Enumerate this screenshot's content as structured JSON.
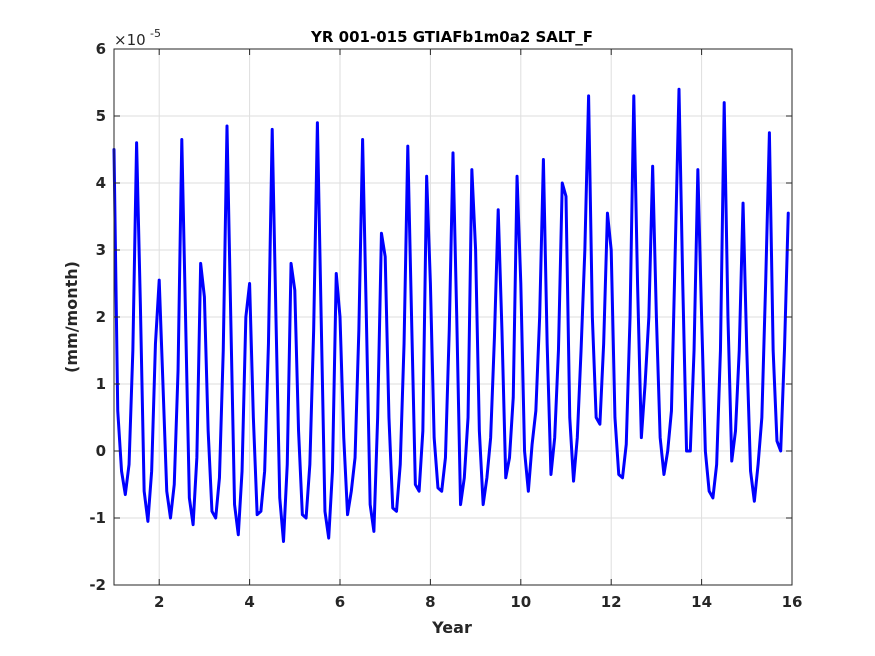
{
  "chart_data": {
    "type": "line",
    "title": "YR 001-015 GTIAFb1m0a2 SALT_F",
    "xlabel": "Year",
    "ylabel": "(mm/month)",
    "y_exponent_base": "×10",
    "y_exponent_power": "-5",
    "xlim": [
      1,
      16
    ],
    "ylim": [
      -2,
      6
    ],
    "xticks": [
      2,
      4,
      6,
      8,
      10,
      12,
      14,
      16
    ],
    "yticks": [
      -2,
      -1,
      0,
      1,
      2,
      3,
      4,
      5,
      6
    ],
    "grid": true,
    "legend": "none",
    "series": [
      {
        "color": "#0000ff",
        "x": [
          1.0,
          1.083,
          1.167,
          1.25,
          1.333,
          1.417,
          1.5,
          1.583,
          1.667,
          1.75,
          1.833,
          1.917,
          2.0,
          2.083,
          2.167,
          2.25,
          2.333,
          2.417,
          2.5,
          2.583,
          2.667,
          2.75,
          2.833,
          2.917,
          3.0,
          3.083,
          3.167,
          3.25,
          3.333,
          3.417,
          3.5,
          3.583,
          3.667,
          3.75,
          3.833,
          3.917,
          4.0,
          4.083,
          4.167,
          4.25,
          4.333,
          4.417,
          4.5,
          4.583,
          4.667,
          4.75,
          4.833,
          4.917,
          5.0,
          5.083,
          5.167,
          5.25,
          5.333,
          5.417,
          5.5,
          5.583,
          5.667,
          5.75,
          5.833,
          5.917,
          6.0,
          6.083,
          6.167,
          6.25,
          6.333,
          6.417,
          6.5,
          6.583,
          6.667,
          6.75,
          6.833,
          6.917,
          7.0,
          7.083,
          7.167,
          7.25,
          7.333,
          7.417,
          7.5,
          7.583,
          7.667,
          7.75,
          7.833,
          7.917,
          8.0,
          8.083,
          8.167,
          8.25,
          8.333,
          8.417,
          8.5,
          8.583,
          8.667,
          8.75,
          8.833,
          8.917,
          9.0,
          9.083,
          9.167,
          9.25,
          9.333,
          9.417,
          9.5,
          9.583,
          9.667,
          9.75,
          9.833,
          9.917,
          10.0,
          10.083,
          10.167,
          10.25,
          10.333,
          10.417,
          10.5,
          10.583,
          10.667,
          10.75,
          10.833,
          10.917,
          11.0,
          11.083,
          11.167,
          11.25,
          11.333,
          11.417,
          11.5,
          11.583,
          11.667,
          11.75,
          11.833,
          11.917,
          12.0,
          12.083,
          12.167,
          12.25,
          12.333,
          12.417,
          12.5,
          12.583,
          12.667,
          12.75,
          12.833,
          12.917,
          13.0,
          13.083,
          13.167,
          13.25,
          13.333,
          13.417,
          13.5,
          13.583,
          13.667,
          13.75,
          13.833,
          13.917,
          14.0,
          14.083,
          14.167,
          14.25,
          14.333,
          14.417,
          14.5,
          14.583,
          14.667,
          14.75,
          14.833,
          14.917,
          15.0,
          15.083,
          15.167,
          15.25,
          15.333,
          15.417,
          15.5,
          15.583,
          15.667,
          15.75,
          15.833,
          15.917
        ],
        "y": [
          4.5,
          0.6,
          -0.3,
          -0.65,
          -0.2,
          1.5,
          4.6,
          2.2,
          -0.6,
          -1.05,
          -0.3,
          1.6,
          2.55,
          1.0,
          -0.6,
          -1.0,
          -0.5,
          1.2,
          4.65,
          2.0,
          -0.7,
          -1.1,
          -0.1,
          2.8,
          2.3,
          0.3,
          -0.9,
          -1.0,
          -0.4,
          1.5,
          4.85,
          2.0,
          -0.8,
          -1.25,
          -0.3,
          2.0,
          2.5,
          0.5,
          -0.95,
          -0.9,
          -0.3,
          1.6,
          4.8,
          2.0,
          -0.7,
          -1.35,
          -0.2,
          2.8,
          2.4,
          0.3,
          -0.95,
          -1.0,
          -0.2,
          1.8,
          4.9,
          2.0,
          -0.9,
          -1.3,
          -0.3,
          2.65,
          2.0,
          0.2,
          -0.95,
          -0.6,
          -0.1,
          1.8,
          4.65,
          2.0,
          -0.8,
          -1.2,
          0.5,
          3.25,
          2.9,
          0.5,
          -0.85,
          -0.9,
          -0.2,
          1.6,
          4.55,
          2.0,
          -0.5,
          -0.6,
          0.3,
          4.1,
          2.5,
          0.2,
          -0.55,
          -0.6,
          -0.1,
          1.8,
          4.45,
          2.0,
          -0.8,
          -0.4,
          0.5,
          4.2,
          3.0,
          0.3,
          -0.8,
          -0.4,
          0.2,
          1.7,
          3.6,
          1.8,
          -0.4,
          -0.1,
          0.8,
          4.1,
          2.5,
          0.0,
          -0.6,
          0.1,
          0.6,
          2.0,
          4.35,
          1.6,
          -0.35,
          0.2,
          1.5,
          4.0,
          3.8,
          0.5,
          -0.45,
          0.2,
          1.5,
          3.0,
          5.3,
          2.0,
          0.5,
          0.4,
          1.6,
          3.55,
          3.0,
          0.5,
          -0.35,
          -0.4,
          0.1,
          2.0,
          5.3,
          2.5,
          0.2,
          1.0,
          2.0,
          4.25,
          2.0,
          0.2,
          -0.35,
          0.0,
          0.6,
          3.0,
          5.4,
          2.5,
          0.0,
          0.0,
          1.5,
          4.2,
          2.0,
          0.0,
          -0.6,
          -0.7,
          -0.2,
          1.5,
          5.2,
          2.0,
          -0.15,
          0.3,
          1.5,
          3.7,
          1.5,
          -0.3,
          -0.75,
          -0.2,
          0.5,
          2.5,
          4.75,
          1.5,
          0.15,
          0.0,
          1.5,
          3.55
        ]
      }
    ]
  }
}
